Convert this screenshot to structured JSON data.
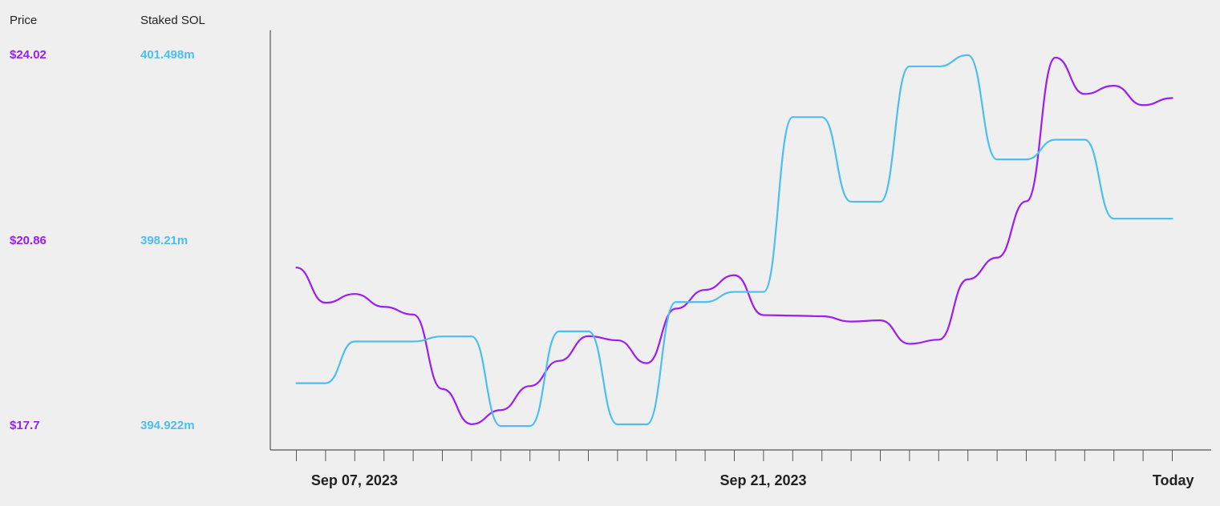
{
  "chart_data": {
    "type": "line",
    "title": "",
    "xlabel": "",
    "left_axes": [
      {
        "header": "Price",
        "color": "#9b1df0",
        "ticks": [
          "$24.02",
          "$20.86",
          "$17.7"
        ],
        "range": [
          17.7,
          24.02
        ]
      },
      {
        "header": "Staked SOL",
        "color": "#4dbfef",
        "ticks": [
          "401.498m",
          "398.21m",
          "394.922m"
        ],
        "range": [
          394.922,
          401.498
        ]
      }
    ],
    "x_tick_labels": [
      {
        "label": "Sep 07, 2023",
        "index": 1
      },
      {
        "label": "Sep 21, 2023",
        "index": 15
      },
      {
        "label": "Today",
        "index": 30
      }
    ],
    "x_tick_count": 31,
    "grid": false,
    "series": [
      {
        "name": "Price",
        "color": "#9b1df0",
        "axis": 0,
        "values": [
          20.4,
          19.8,
          19.95,
          19.73,
          19.6,
          18.33,
          17.73,
          17.97,
          18.38,
          18.81,
          19.23,
          19.16,
          18.77,
          19.7,
          20.02,
          20.27,
          19.59,
          19.58,
          19.57,
          19.48,
          19.5,
          19.1,
          19.17,
          20.2,
          20.57,
          21.53,
          23.98,
          23.36,
          23.5,
          23.17,
          23.29
        ]
      },
      {
        "name": "Staked SOL",
        "color": "#4dbfef",
        "axis": 1,
        "values": [
          395.68,
          395.68,
          396.42,
          396.42,
          396.42,
          396.51,
          396.51,
          394.92,
          394.92,
          396.6,
          396.6,
          394.95,
          394.95,
          397.12,
          397.12,
          397.3,
          397.3,
          400.4,
          400.4,
          398.9,
          398.9,
          401.3,
          401.3,
          401.5,
          399.65,
          399.65,
          400.0,
          400.0,
          398.6,
          398.6,
          398.6
        ]
      }
    ]
  }
}
